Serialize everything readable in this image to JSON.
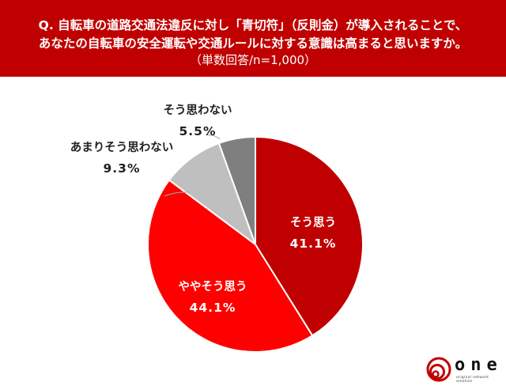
{
  "header": {
    "question_line1": "Q. 自転車の道路交通法違反に対し「青切符」（反則金）が導入されることで、",
    "question_line2": "あなたの自転車の安全運転や交通ルールに対する意識は高まると思いますか。",
    "sample_note": "（単数回答/n=1,000）",
    "background_color": "#c00000"
  },
  "chart_data": {
    "type": "pie",
    "title": "Q. 自転車の道路交通法違反に対し「青切符」（反則金）が導入されることで、あなたの自転車の安全運転や交通ルールに対する意識は高まると思いますか。",
    "subtitle": "（単数回答/n=1,000）",
    "categories": [
      "そう思う",
      "ややそう思う",
      "あまりそう思わない",
      "そう思わない"
    ],
    "values": [
      41.1,
      44.1,
      9.3,
      5.5
    ],
    "value_labels": [
      "41.1%",
      "44.1%",
      "9.3%",
      "5.5%"
    ],
    "colors": [
      "#c00000",
      "#ff0000",
      "#bfbfbf",
      "#7f7f7f"
    ],
    "start_angle_deg": 0,
    "direction": "clockwise",
    "legend": "none (labels on/beside slices)",
    "unit": "%"
  },
  "labels": {
    "slice0": {
      "name": "そう思う",
      "value": "41.1%"
    },
    "slice1": {
      "name": "ややそう思う",
      "value": "44.1%"
    },
    "slice2": {
      "name": "あまりそう思わない",
      "value": "9.3%"
    },
    "slice3": {
      "name": "そう思わない",
      "value": "5.5%"
    }
  },
  "logo": {
    "word": "one",
    "tagline": "original network emotion",
    "color": "#c00000"
  }
}
